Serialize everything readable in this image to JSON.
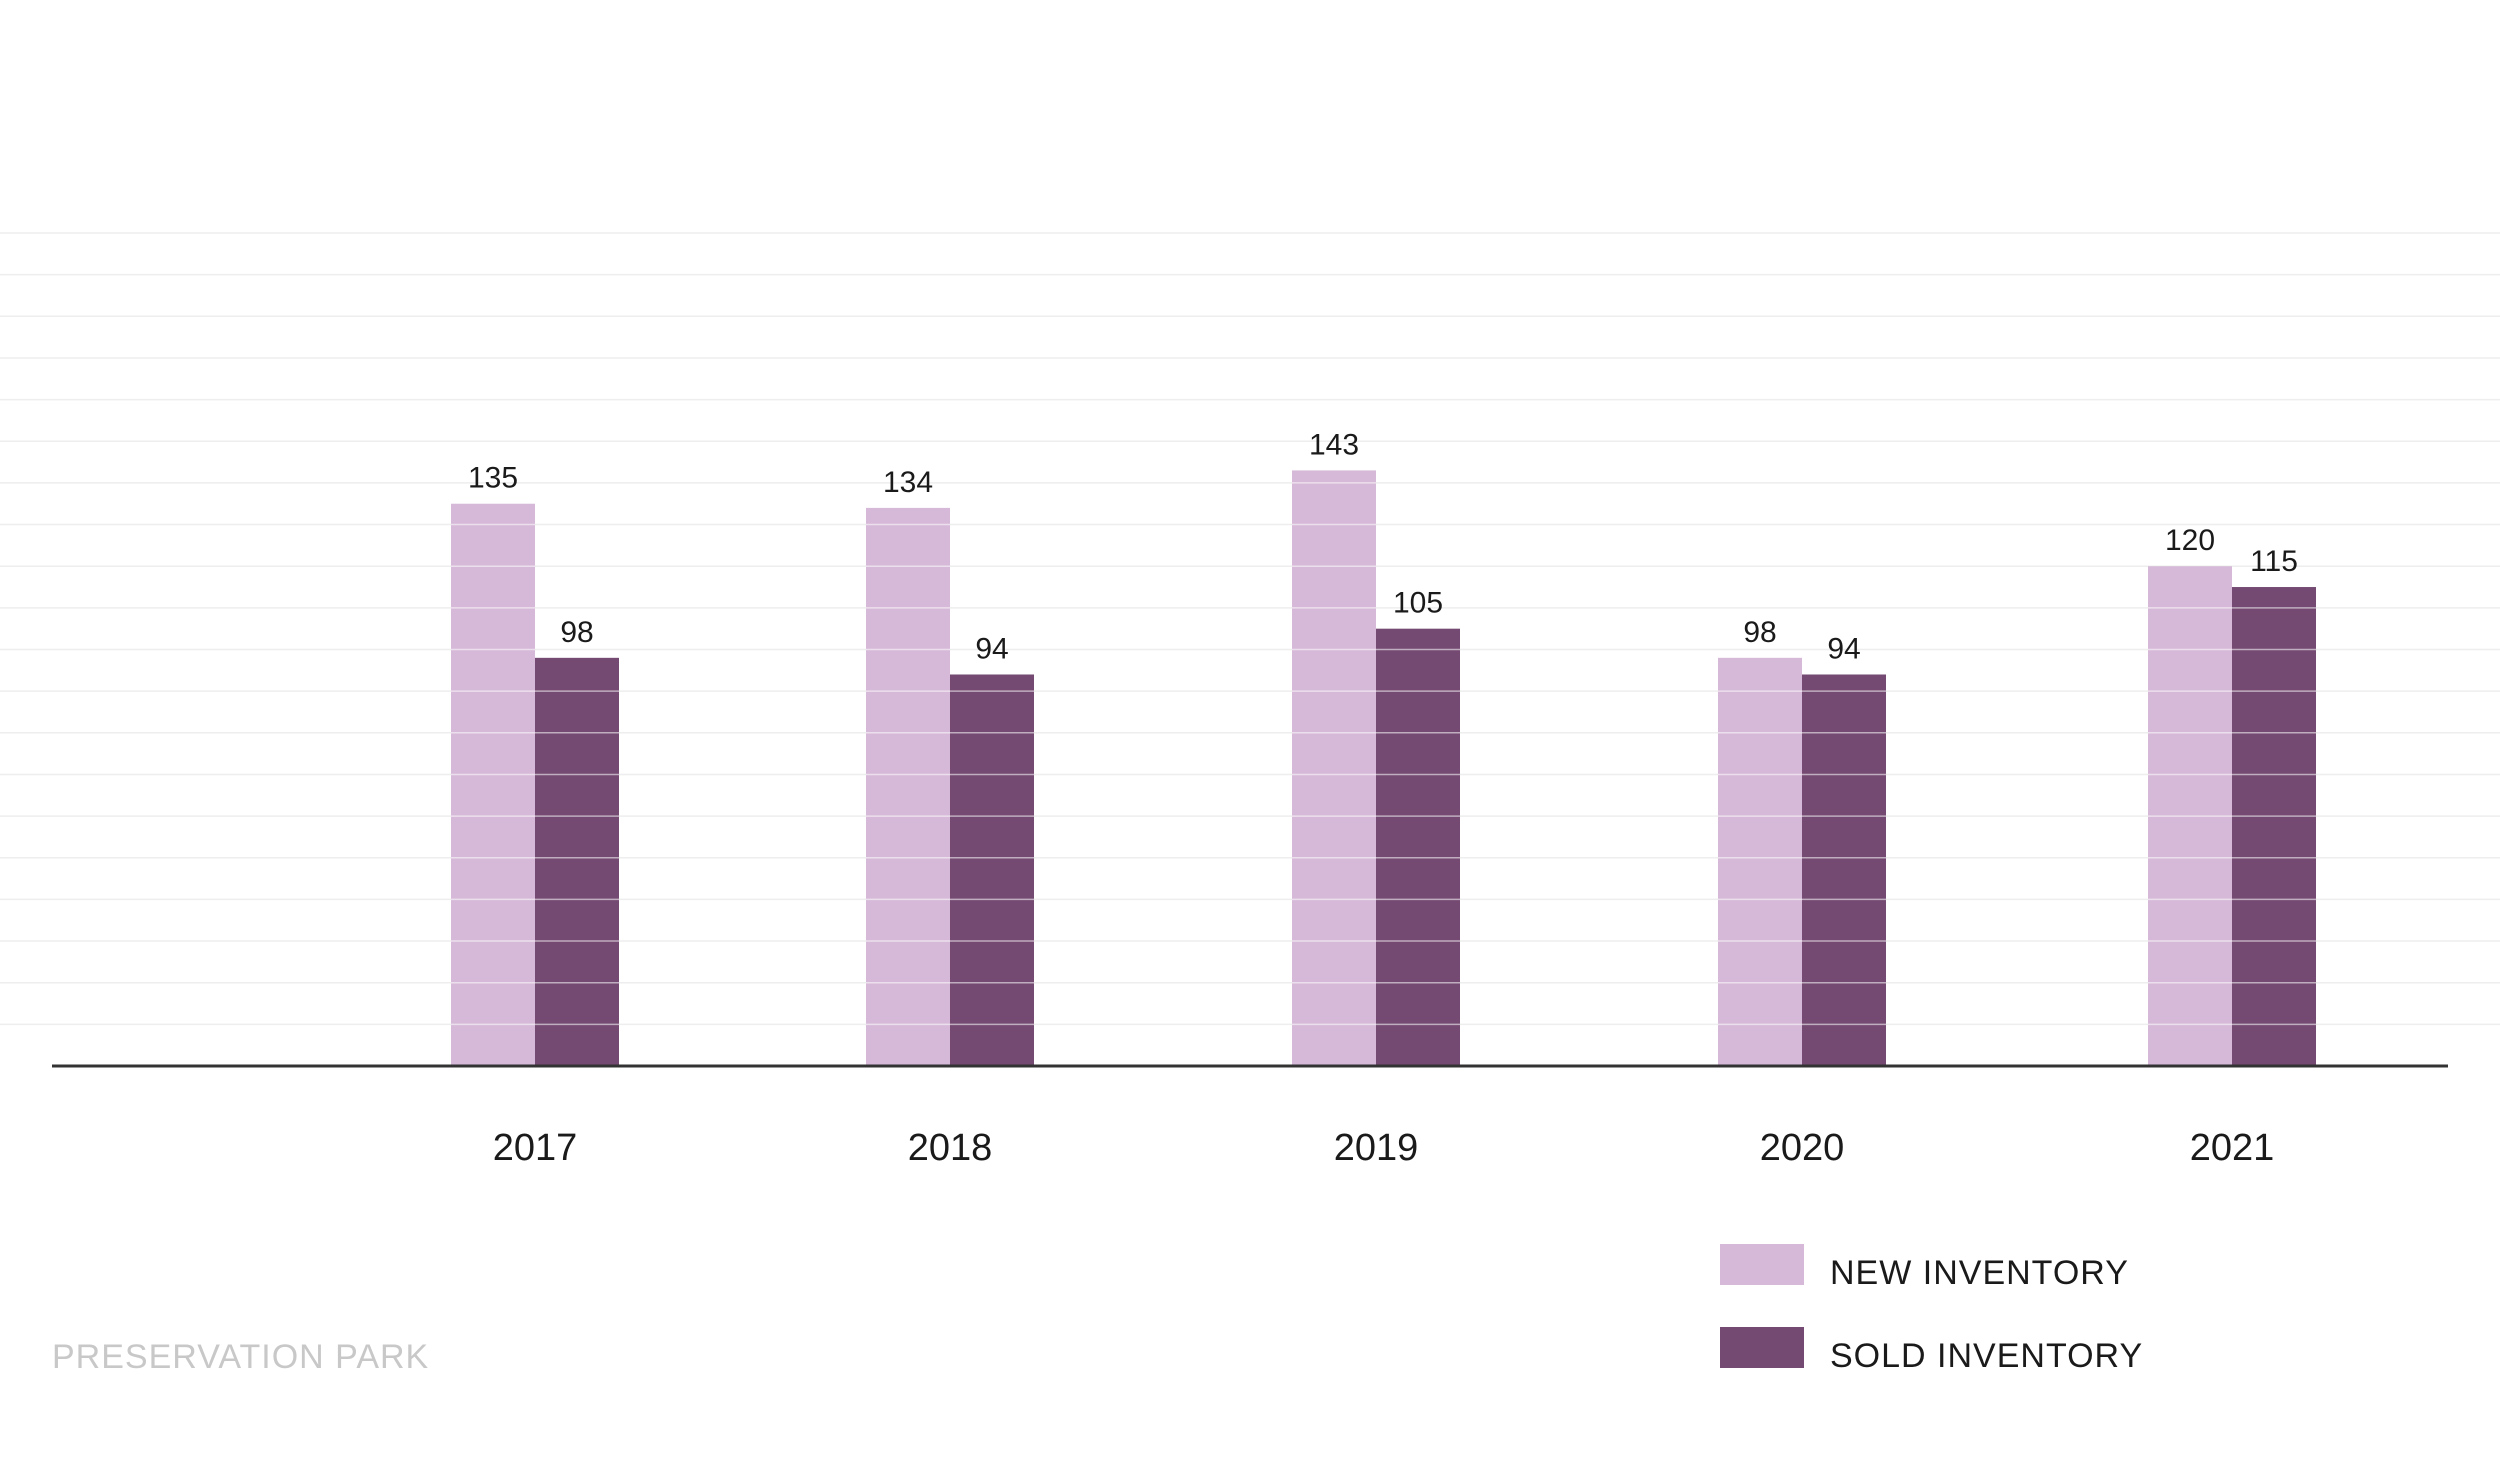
{
  "chart_data": {
    "type": "bar",
    "categories": [
      "2017",
      "2018",
      "2019",
      "2020",
      "2021"
    ],
    "series": [
      {
        "name": "NEW INVENTORY",
        "values": [
          135,
          134,
          143,
          98,
          120
        ],
        "color": "#d6b9d8"
      },
      {
        "name": "SOLD INVENTORY",
        "values": [
          98,
          94,
          105,
          94,
          115
        ],
        "color": "#744a72"
      }
    ],
    "title": "",
    "xlabel": "",
    "ylabel": "",
    "ylim": [
      0,
      200
    ],
    "grid": true,
    "legend": "bottom-right",
    "data_labels": true
  },
  "footer": {
    "text": "PRESERVATION PARK"
  },
  "colors": {
    "axis": "#333333",
    "grid": "#eeeeee",
    "footer_text": "#c8c8c8"
  }
}
